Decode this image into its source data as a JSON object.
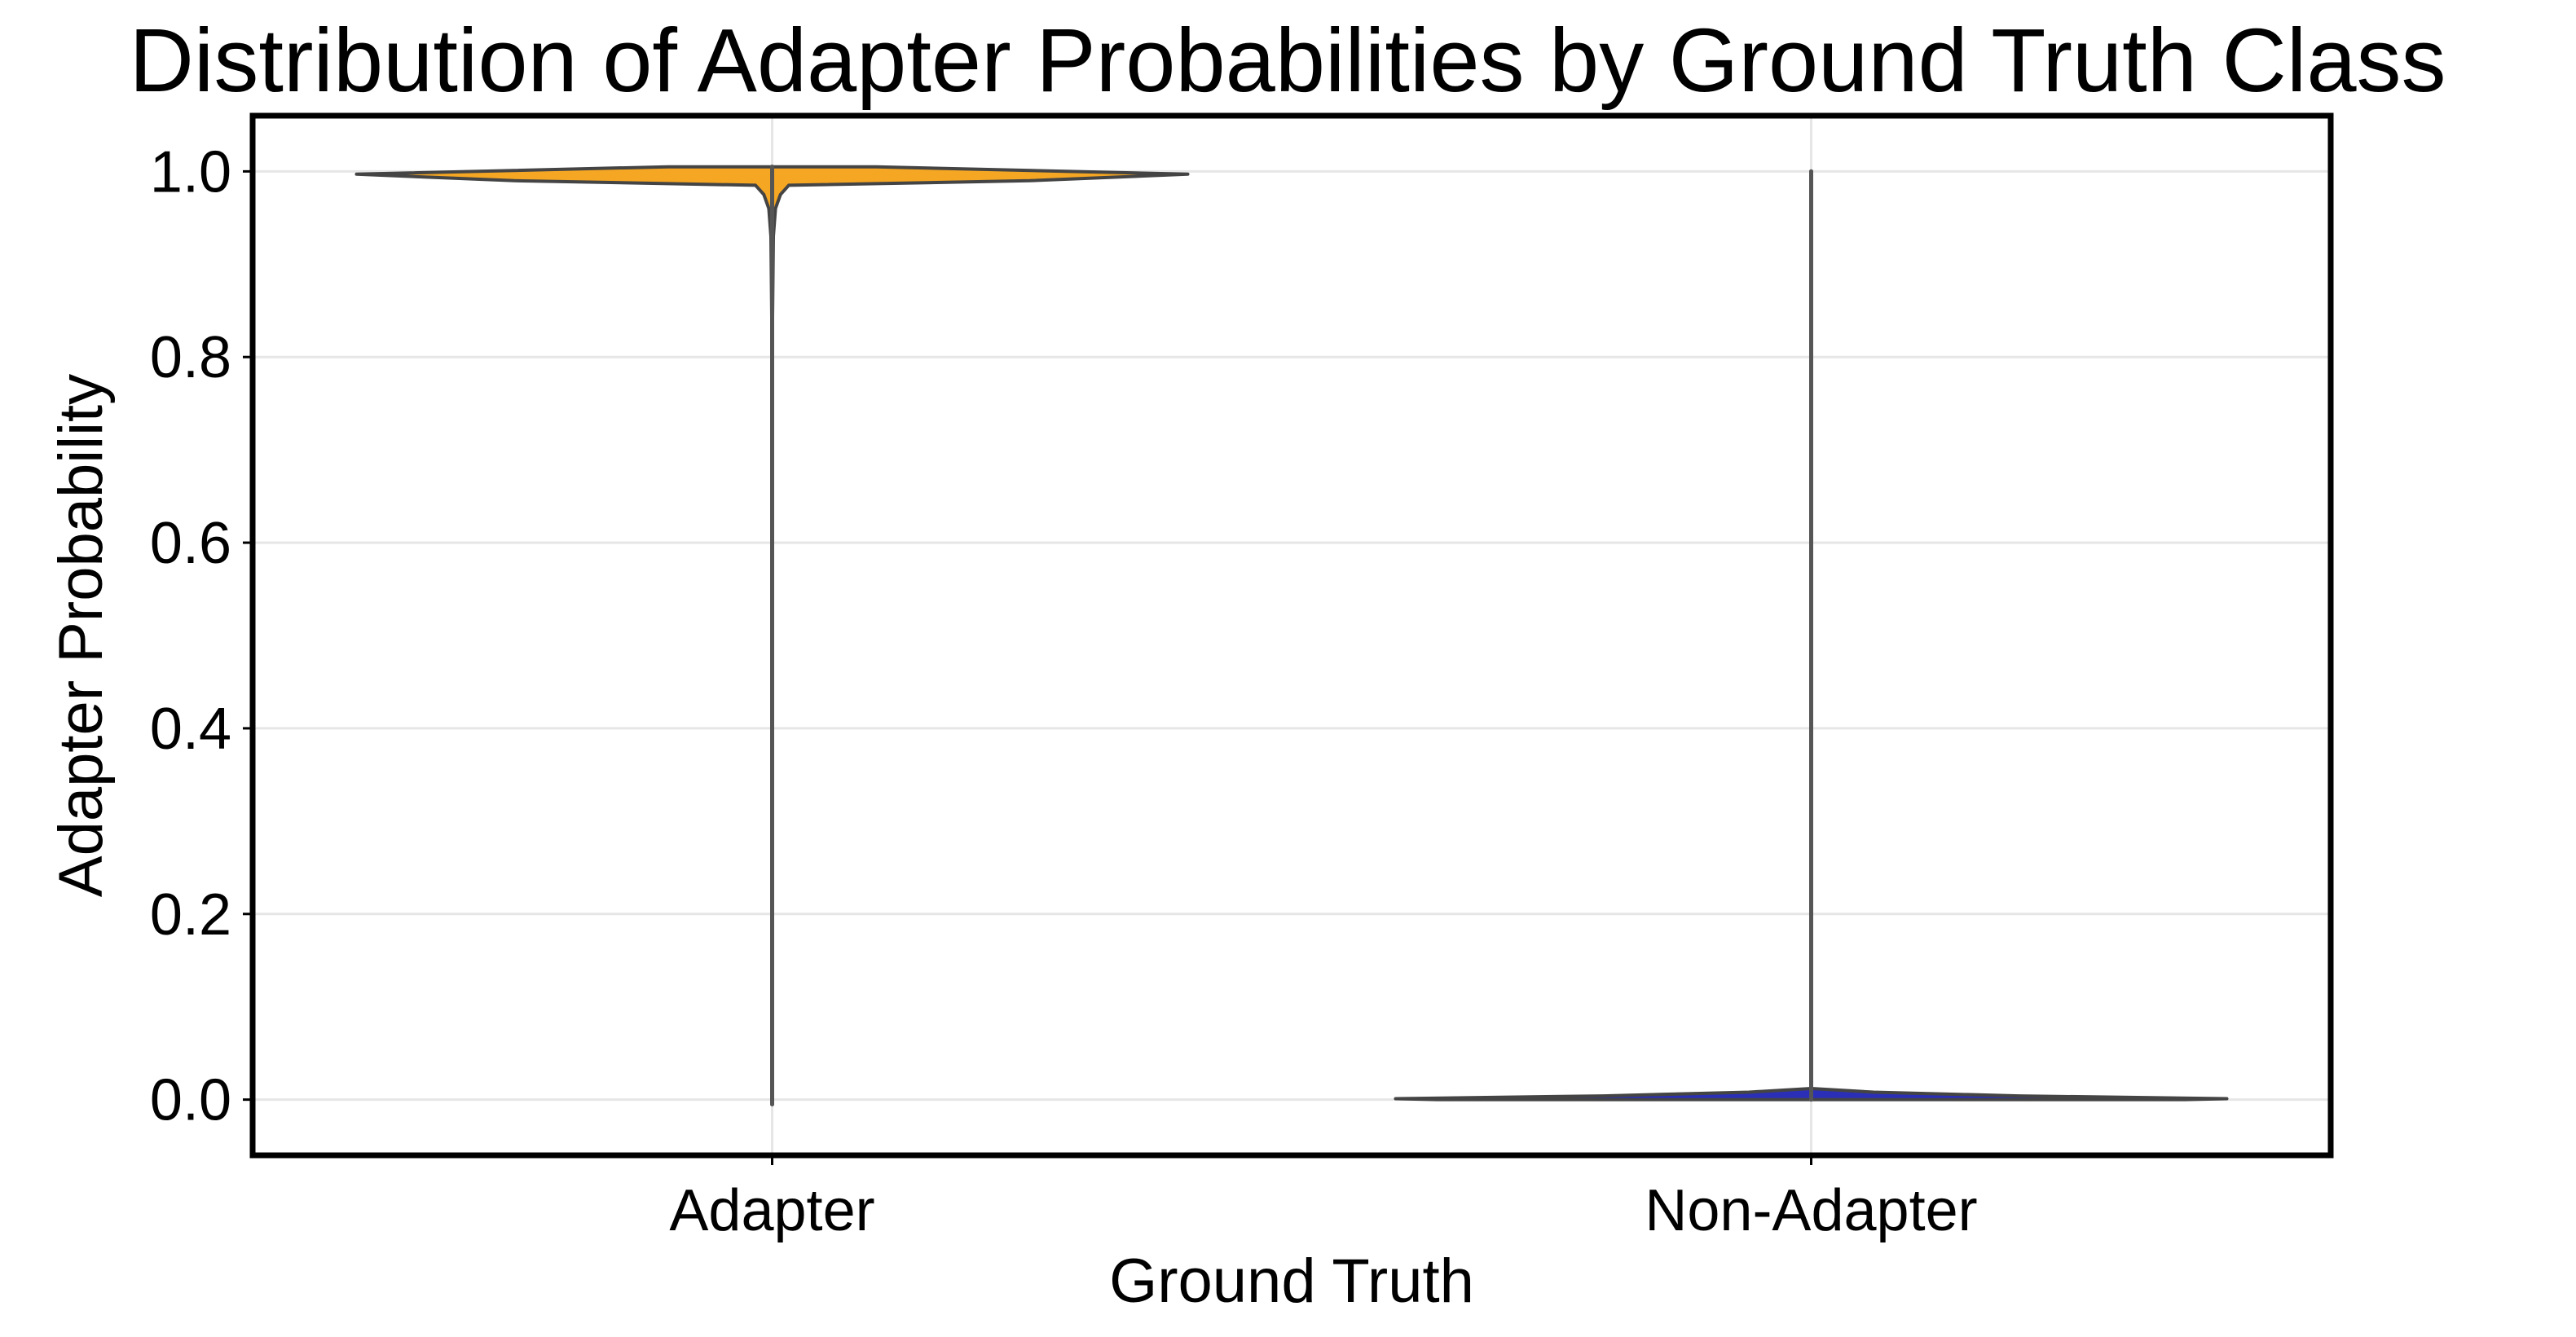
{
  "chart_data": {
    "type": "violin",
    "title": "Distribution of Adapter Probabilities by Ground Truth Class",
    "xlabel": "Ground Truth",
    "ylabel": "Adapter Probability",
    "categories": [
      "Adapter",
      "Non-Adapter"
    ],
    "ylim": [
      -0.06,
      1.06
    ],
    "yticks": [
      0.0,
      0.2,
      0.4,
      0.6,
      0.8,
      1.0
    ],
    "ytick_labels": [
      "0.0",
      "0.2",
      "0.4",
      "0.6",
      "0.8",
      "1.0"
    ],
    "grid": true,
    "legend": "none",
    "series": [
      {
        "category": "Adapter",
        "color": "#f5a623",
        "min": -0.005,
        "max": 1.005,
        "peak": 0.997,
        "profile": [
          [
            1.005,
            0.25
          ],
          [
            0.997,
            1.0
          ],
          [
            0.99,
            0.62
          ],
          [
            0.985,
            0.04
          ],
          [
            0.975,
            0.02
          ],
          [
            0.96,
            0.008
          ],
          [
            0.93,
            0.003
          ],
          [
            0.8,
            0.0
          ],
          [
            -0.005,
            0.0
          ]
        ]
      },
      {
        "category": "Non-Adapter",
        "color": "#2b2fb8",
        "min": 0.0,
        "max": 1.0,
        "peak": 0.001,
        "profile": [
          [
            0.012,
            0.0
          ],
          [
            0.008,
            0.15
          ],
          [
            0.004,
            0.5
          ],
          [
            0.001,
            1.0
          ],
          [
            0.0,
            0.9
          ]
        ]
      }
    ]
  }
}
